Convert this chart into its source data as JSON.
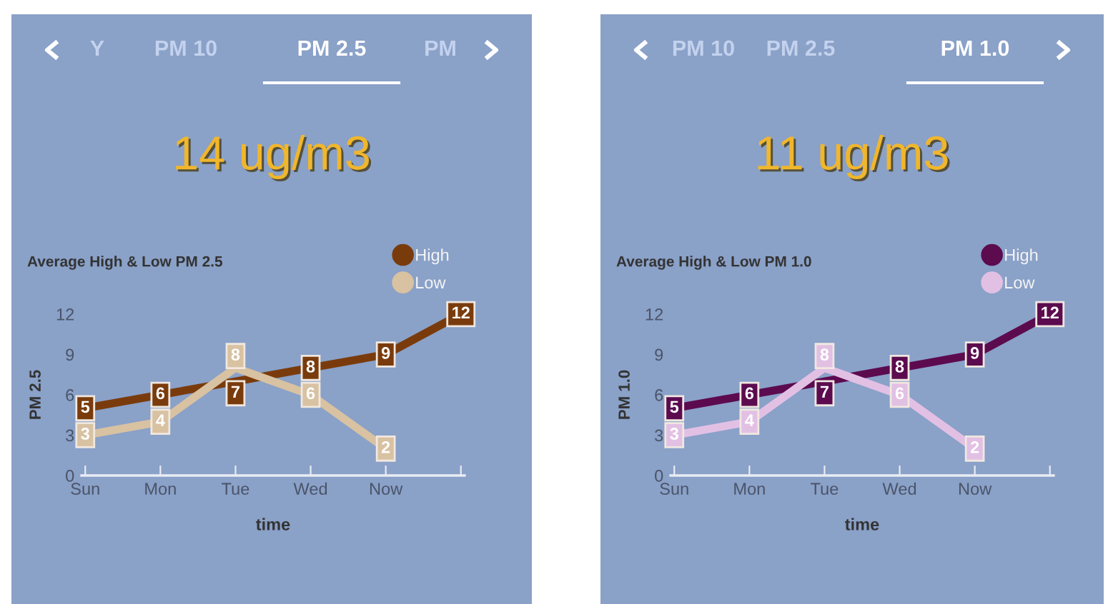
{
  "chart_data": [
    {
      "type": "line",
      "title": "Average High & Low PM 2.5",
      "subtitle": "14 ug/m3",
      "xlabel": "time",
      "ylabel": "PM 2.5",
      "annotations": [
        "Y",
        "PM 10",
        "PM 2.5",
        "PM"
      ],
      "categories": [
        "Sun",
        "Mon",
        "Tue",
        "Wed",
        "Now",
        null
      ],
      "series": [
        {
          "name": "High",
          "color": "#7a3b0c",
          "values": [
            5,
            6,
            7,
            8,
            9,
            12
          ]
        },
        {
          "name": "Low",
          "color": "#d8c2a2",
          "values": [
            3,
            4,
            8,
            6,
            2,
            null
          ]
        }
      ],
      "ylim": [
        0,
        12
      ],
      "yticks": [
        0,
        3,
        6,
        9,
        12
      ],
      "legend": "top right",
      "data_labels": true,
      "marker": "square",
      "line_style": "solid",
      "grid": false
    },
    {
      "type": "line",
      "title": "Average High & Low PM 1.0",
      "subtitle": "11 ug/m3",
      "xlabel": "time",
      "ylabel": "PM 1.0",
      "annotations": [
        "PM 10",
        "PM 2.5",
        "PM 1.0"
      ],
      "categories": [
        "Sun",
        "Mon",
        "Tue",
        "Wed",
        "Now",
        null
      ],
      "series": [
        {
          "name": "High",
          "color": "#5c0b4f",
          "values": [
            5,
            6,
            7,
            8,
            9,
            12
          ]
        },
        {
          "name": "Low",
          "color": "#e2c0e4",
          "values": [
            3,
            4,
            8,
            6,
            2,
            null
          ]
        }
      ],
      "ylim": [
        0,
        12
      ],
      "yticks": [
        0,
        3,
        6,
        9,
        12
      ],
      "legend": "top right",
      "data_labels": true,
      "marker": "square",
      "line_style": "solid",
      "grid": false
    }
  ]
}
